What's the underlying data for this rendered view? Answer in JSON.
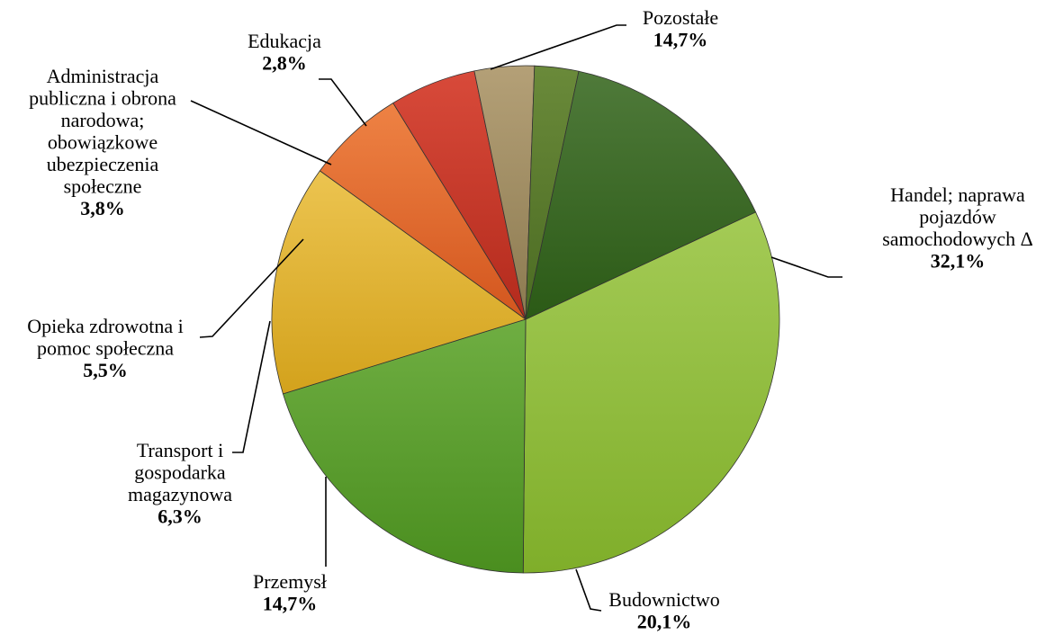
{
  "chart_data": {
    "type": "pie",
    "title": "",
    "start_angle_deg": 65,
    "direction": "clockwise",
    "slices": [
      {
        "label": [
          "Handel; naprawa",
          "pojazdów",
          "samochodowych Δ"
        ],
        "value_label": "32,1%",
        "value": 32.1,
        "color_light": "#a4cb56",
        "color_dark": "#7fae2a"
      },
      {
        "label": [
          "Budownictwo"
        ],
        "value_label": "20,1%",
        "value": 20.1,
        "color_light": "#6fae42",
        "color_dark": "#4a8e1f"
      },
      {
        "label": [
          "Przemysł"
        ],
        "value_label": "14,7%",
        "value": 14.7,
        "color_light": "#ecc450",
        "color_dark": "#d3a21c"
      },
      {
        "label": [
          "Transport i",
          "gospodarka",
          "magazynowa"
        ],
        "value_label": "6,3%",
        "value": 6.3,
        "color_light": "#ee8244",
        "color_dark": "#d3561e"
      },
      {
        "label": [
          "Opieka zdrowotna i",
          "pomoc społeczna"
        ],
        "value_label": "5,5%",
        "value": 5.5,
        "color_light": "#d84a3a",
        "color_dark": "#b32a1c"
      },
      {
        "label": [
          "Administracja",
          "publiczna i obrona",
          "narodowa;",
          "obowiązkowe",
          "ubezpieczenia",
          "społeczne"
        ],
        "value_label": "3,8%",
        "value": 3.8,
        "color_light": "#b4a077",
        "color_dark": "#8c7a50"
      },
      {
        "label": [
          "Edukacja"
        ],
        "value_label": "2,8%",
        "value": 2.8,
        "color_light": "#6a8a3a",
        "color_dark": "#4b6b22"
      },
      {
        "label": [
          "Pozostałe"
        ],
        "value_label": "14,7%",
        "value": 14.7,
        "color_light": "#4f7a3a",
        "color_dark": "#2b5a16"
      }
    ]
  }
}
